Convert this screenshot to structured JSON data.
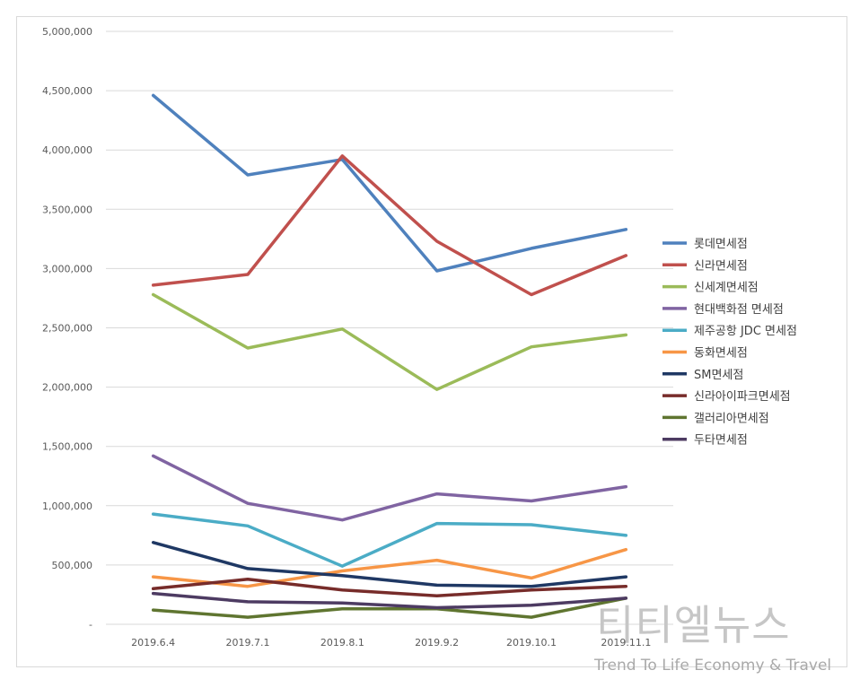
{
  "chart_data": {
    "type": "line",
    "title": "",
    "xlabel": "",
    "ylabel": "",
    "categories": [
      "2019.6.4",
      "2019.7.1",
      "2019.8.1",
      "2019.9.2",
      "2019.10.1",
      "2019.11.1"
    ],
    "ylim": [
      0,
      5000000
    ],
    "y_ticks": [
      0,
      500000,
      1000000,
      1500000,
      2000000,
      2500000,
      3000000,
      3500000,
      4000000,
      4500000,
      5000000
    ],
    "y_tick_labels": [
      "-",
      "500,000",
      "1,000,000",
      "1,500,000",
      "2,000,000",
      "2,500,000",
      "3,000,000",
      "3,500,000",
      "4,000,000",
      "4,500,000",
      "5,000,000"
    ],
    "grid": "horizontal",
    "legend_position": "right",
    "series": [
      {
        "name": "롯데면세점",
        "color": "#4F81BD",
        "values": [
          4460000,
          3790000,
          3920000,
          2980000,
          3170000,
          3330000
        ]
      },
      {
        "name": "신라면세점",
        "color": "#C0504D",
        "values": [
          2860000,
          2950000,
          3950000,
          3230000,
          2780000,
          3110000
        ]
      },
      {
        "name": "신세계면세점",
        "color": "#9BBB59",
        "values": [
          2780000,
          2330000,
          2490000,
          1980000,
          2340000,
          2440000
        ]
      },
      {
        "name": "현대백화점 면세점",
        "color": "#8064A2",
        "values": [
          1420000,
          1020000,
          880000,
          1100000,
          1040000,
          1160000
        ]
      },
      {
        "name": "제주공항 JDC 면세점",
        "color": "#4BACC6",
        "values": [
          930000,
          830000,
          490000,
          850000,
          840000,
          750000
        ]
      },
      {
        "name": "동화면세점",
        "color": "#F79646",
        "values": [
          400000,
          320000,
          450000,
          540000,
          390000,
          630000
        ]
      },
      {
        "name": "SM면세점",
        "color": "#1F3864",
        "values": [
          690000,
          470000,
          410000,
          330000,
          320000,
          400000
        ]
      },
      {
        "name": "신라아이파크면세점",
        "color": "#772C2A",
        "values": [
          300000,
          380000,
          290000,
          240000,
          290000,
          320000
        ]
      },
      {
        "name": "갤러리아면세점",
        "color": "#5F7530",
        "values": [
          120000,
          60000,
          130000,
          130000,
          60000,
          220000
        ]
      },
      {
        "name": "두타면세점",
        "color": "#4D3B62",
        "values": [
          260000,
          190000,
          180000,
          140000,
          160000,
          220000
        ]
      }
    ]
  },
  "watermark": {
    "title": "티티엘뉴스",
    "tagline": "Trend To Life Economy & Travel"
  }
}
